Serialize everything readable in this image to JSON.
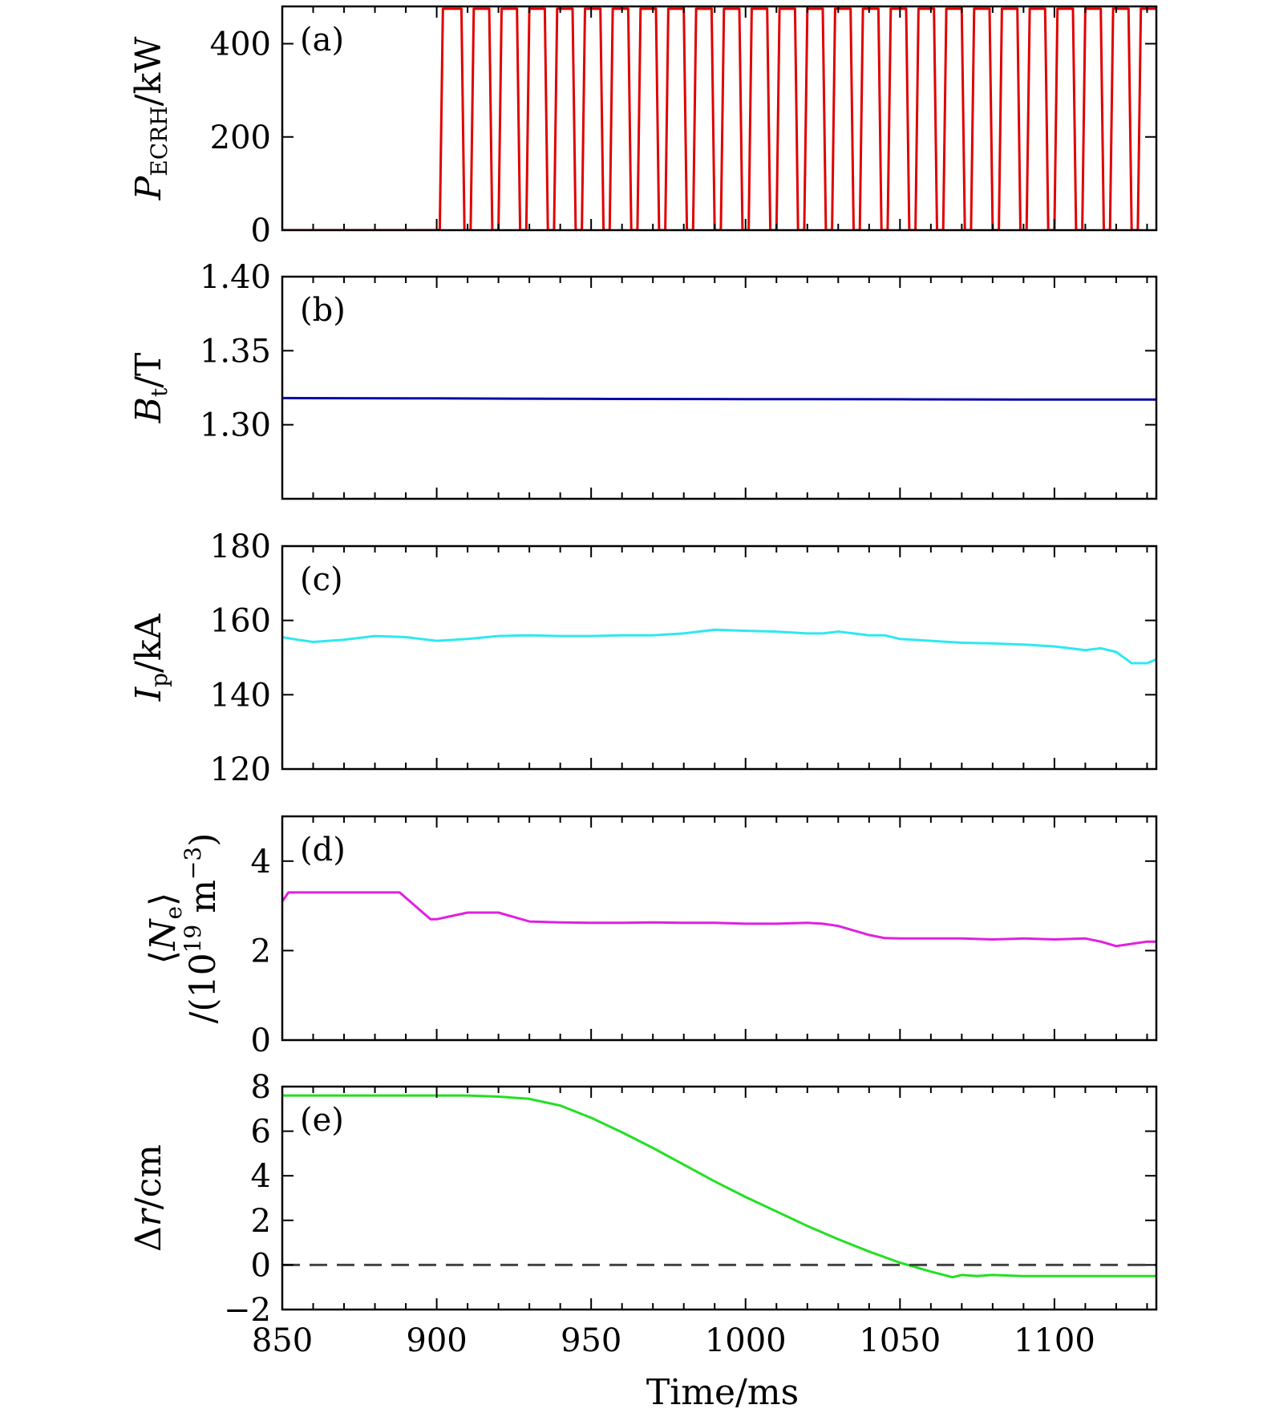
{
  "chart_data": [
    {
      "type": "line",
      "panel_label": "(a)",
      "ylabel_main": "P",
      "ylabel_sub": "ECRH",
      "ylabel_rest": "/kW",
      "ylim": [
        0,
        480
      ],
      "yticks": [
        0,
        200,
        400
      ],
      "series": [
        {
          "color": "#e00000",
          "x": [
            850,
            901,
            902,
            908,
            909,
            911,
            912,
            917,
            918,
            920,
            921,
            926,
            927,
            929,
            930,
            935,
            936,
            938,
            939,
            944,
            945,
            947,
            948,
            953,
            954,
            956,
            957,
            962,
            963,
            965,
            966,
            971,
            972,
            974,
            975,
            980,
            981,
            983,
            984,
            989,
            990,
            992,
            993,
            998,
            999,
            1001,
            1002,
            1007,
            1008,
            1010,
            1011,
            1016,
            1017,
            1019,
            1020,
            1025,
            1026,
            1028,
            1029,
            1034,
            1035,
            1037,
            1038,
            1043,
            1044,
            1046,
            1047,
            1052,
            1053,
            1055,
            1056,
            1061,
            1062,
            1064,
            1065,
            1070,
            1071,
            1073,
            1074,
            1079,
            1080,
            1082,
            1083,
            1088,
            1089,
            1091,
            1092,
            1097,
            1098,
            1100,
            1101,
            1106,
            1107,
            1109,
            1110,
            1115,
            1116,
            1118,
            1119,
            1124,
            1125,
            1127,
            1128,
            1133
          ],
          "y": [
            0,
            0,
            475,
            475,
            0,
            0,
            475,
            475,
            0,
            0,
            475,
            475,
            0,
            0,
            475,
            475,
            0,
            0,
            475,
            475,
            0,
            0,
            475,
            475,
            0,
            0,
            475,
            475,
            0,
            0,
            475,
            475,
            0,
            0,
            475,
            475,
            0,
            0,
            475,
            475,
            0,
            0,
            475,
            475,
            0,
            0,
            475,
            475,
            0,
            0,
            475,
            475,
            0,
            0,
            475,
            475,
            0,
            0,
            475,
            475,
            0,
            0,
            475,
            475,
            0,
            0,
            475,
            475,
            0,
            0,
            475,
            475,
            0,
            0,
            475,
            475,
            0,
            0,
            475,
            475,
            0,
            0,
            475,
            475,
            0,
            0,
            475,
            475,
            0,
            0,
            475,
            475,
            0,
            0,
            475,
            475,
            0,
            0,
            475,
            475,
            0,
            0,
            475,
            475
          ]
        }
      ]
    },
    {
      "type": "line",
      "panel_label": "(b)",
      "ylabel_main": "B",
      "ylabel_sub": "t",
      "ylabel_rest": "/T",
      "ylim": [
        1.25,
        1.4
      ],
      "yticks": [
        1.3,
        1.35,
        1.4
      ],
      "ytick_labels": [
        "1.30",
        "1.35",
        "1.40"
      ],
      "series": [
        {
          "color": "#0a0aa8",
          "x": [
            850,
            900,
            950,
            1000,
            1050,
            1100,
            1133
          ],
          "y": [
            1.318,
            1.3178,
            1.3175,
            1.3173,
            1.3172,
            1.317,
            1.317
          ]
        }
      ]
    },
    {
      "type": "line",
      "panel_label": "(c)",
      "ylabel_main": "I",
      "ylabel_sub": "p",
      "ylabel_rest": "/kA",
      "ylim": [
        120,
        180
      ],
      "yticks": [
        120,
        140,
        160,
        180
      ],
      "series": [
        {
          "color": "#2ee8f0",
          "x": [
            850,
            855,
            860,
            870,
            880,
            890,
            900,
            910,
            920,
            930,
            940,
            950,
            960,
            970,
            980,
            990,
            1000,
            1010,
            1020,
            1025,
            1030,
            1035,
            1040,
            1045,
            1050,
            1060,
            1070,
            1080,
            1090,
            1100,
            1105,
            1110,
            1115,
            1120,
            1125,
            1130,
            1133
          ],
          "y": [
            155.5,
            154.8,
            154.2,
            154.8,
            155.8,
            155.5,
            154.5,
            155,
            155.8,
            156,
            155.8,
            155.8,
            156,
            156,
            156.5,
            157.5,
            157.2,
            157,
            156.5,
            156.5,
            157,
            156.5,
            156,
            156,
            155,
            154.5,
            154,
            153.8,
            153.5,
            153,
            152.5,
            152,
            152.5,
            151.5,
            148.5,
            148.5,
            149.5
          ]
        }
      ]
    },
    {
      "type": "line",
      "panel_label": "(d)",
      "ylabel_line1": "⟨N",
      "ylabel_line1_sub": "e",
      "ylabel_line1_end": "⟩",
      "ylabel_line2": "/(10",
      "ylabel_line2_sup": "19",
      "ylabel_line2_mid": " m",
      "ylabel_line2_sup2": "−3",
      "ylabel_line2_end": ")",
      "ylim": [
        0,
        5
      ],
      "yticks": [
        0,
        2,
        4
      ],
      "series": [
        {
          "color": "#e020e0",
          "x": [
            850,
            852,
            860,
            880,
            888,
            898,
            900,
            910,
            920,
            930,
            940,
            950,
            960,
            970,
            980,
            990,
            1000,
            1010,
            1020,
            1025,
            1030,
            1035,
            1040,
            1045,
            1050,
            1060,
            1070,
            1080,
            1090,
            1100,
            1110,
            1115,
            1120,
            1125,
            1130,
            1133
          ],
          "y": [
            3.1,
            3.3,
            3.3,
            3.3,
            3.3,
            2.7,
            2.7,
            2.85,
            2.85,
            2.65,
            2.63,
            2.62,
            2.62,
            2.63,
            2.62,
            2.62,
            2.6,
            2.6,
            2.62,
            2.6,
            2.55,
            2.45,
            2.35,
            2.28,
            2.27,
            2.27,
            2.27,
            2.25,
            2.27,
            2.25,
            2.27,
            2.2,
            2.1,
            2.15,
            2.2,
            2.2
          ]
        }
      ]
    },
    {
      "type": "line",
      "panel_label": "(e)",
      "ylabel_main": "Δ",
      "ylabel_italic": "r",
      "ylabel_rest": "/cm",
      "xlabel": "Time/ms",
      "xlim": [
        850,
        1133
      ],
      "xticks": [
        850,
        900,
        950,
        1000,
        1050,
        1100
      ],
      "ylim": [
        -2,
        8
      ],
      "yticks": [
        -2,
        0,
        2,
        4,
        6,
        8
      ],
      "ytick_labels": [
        "−2",
        "0",
        "2",
        "4",
        "6",
        "8"
      ],
      "series": [
        {
          "color": "#22e022",
          "x": [
            850,
            880,
            910,
            920,
            930,
            940,
            950,
            960,
            970,
            980,
            990,
            1000,
            1010,
            1020,
            1030,
            1040,
            1050,
            1060,
            1067,
            1070,
            1075,
            1080,
            1090,
            1100,
            1110,
            1120,
            1133
          ],
          "y": [
            7.6,
            7.6,
            7.6,
            7.55,
            7.45,
            7.15,
            6.6,
            5.95,
            5.25,
            4.5,
            3.75,
            3.05,
            2.4,
            1.75,
            1.15,
            0.6,
            0.1,
            -0.3,
            -0.55,
            -0.45,
            -0.5,
            -0.45,
            -0.5,
            -0.5,
            -0.5,
            -0.5,
            -0.5
          ]
        },
        {
          "color": "#444444",
          "dashed": true,
          "x": [
            850,
            1133
          ],
          "y": [
            0,
            0
          ]
        }
      ]
    }
  ]
}
